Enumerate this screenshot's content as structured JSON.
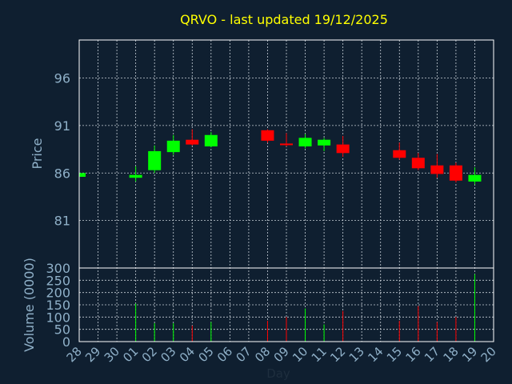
{
  "chart_data": {
    "type": "candlestick",
    "title": "QRVO - last updated 19/12/2025",
    "xlabel": "Day",
    "ylabel": "Price",
    "volume_ylabel": "Volume (0000)",
    "grid": true,
    "categories": [
      "28",
      "29",
      "30",
      "01",
      "02",
      "03",
      "04",
      "05",
      "06",
      "07",
      "08",
      "09",
      "10",
      "11",
      "12",
      "13",
      "14",
      "15",
      "16",
      "17",
      "18",
      "19",
      "20"
    ],
    "price_ylim": [
      76,
      100
    ],
    "price_ticks": [
      81,
      86,
      91,
      96
    ],
    "volume_ylim": [
      0,
      300
    ],
    "volume_ticks": [
      0,
      50,
      100,
      150,
      200,
      250,
      300
    ],
    "colors": {
      "up": "#00ff00",
      "down": "#ff0000",
      "background": "#0f1f30",
      "grid": "#c8d0d8",
      "axis_text": "#8fb0c8",
      "title": "#ffff00"
    },
    "candles": [
      {
        "day": "28",
        "open": 85.6,
        "close": 86.0,
        "high": 86.1,
        "low": 85.5,
        "volume": 0
      },
      {
        "day": "01",
        "open": 85.5,
        "close": 85.8,
        "high": 86.7,
        "low": 85.1,
        "volume": 155
      },
      {
        "day": "02",
        "open": 86.3,
        "close": 88.3,
        "high": 88.9,
        "low": 86.0,
        "volume": 75
      },
      {
        "day": "03",
        "open": 88.2,
        "close": 89.4,
        "high": 90.0,
        "low": 87.9,
        "volume": 75
      },
      {
        "day": "04",
        "open": 89.5,
        "close": 89.0,
        "high": 90.6,
        "low": 88.9,
        "volume": 65
      },
      {
        "day": "05",
        "open": 88.8,
        "close": 90.0,
        "high": 90.3,
        "low": 88.7,
        "volume": 80
      },
      {
        "day": "08",
        "open": 90.5,
        "close": 89.4,
        "high": 90.6,
        "low": 89.2,
        "volume": 85
      },
      {
        "day": "09",
        "open": 89.1,
        "close": 89.0,
        "high": 90.2,
        "low": 88.8,
        "volume": 100
      },
      {
        "day": "10",
        "open": 88.8,
        "close": 89.7,
        "high": 90.1,
        "low": 88.6,
        "volume": 135
      },
      {
        "day": "11",
        "open": 88.9,
        "close": 89.5,
        "high": 89.7,
        "low": 88.3,
        "volume": 70
      },
      {
        "day": "12",
        "open": 89.0,
        "close": 88.1,
        "high": 89.9,
        "low": 87.7,
        "volume": 125
      },
      {
        "day": "15",
        "open": 88.4,
        "close": 87.6,
        "high": 89.2,
        "low": 87.4,
        "volume": 85
      },
      {
        "day": "16",
        "open": 87.6,
        "close": 86.5,
        "high": 88.1,
        "low": 86.3,
        "volume": 145
      },
      {
        "day": "17",
        "open": 86.8,
        "close": 85.9,
        "high": 88.0,
        "low": 85.5,
        "volume": 80
      },
      {
        "day": "18",
        "open": 86.8,
        "close": 85.2,
        "high": 87.1,
        "low": 85.0,
        "volume": 100
      },
      {
        "day": "19",
        "open": 85.1,
        "close": 85.8,
        "high": 86.6,
        "low": 84.8,
        "volume": 275
      }
    ]
  }
}
